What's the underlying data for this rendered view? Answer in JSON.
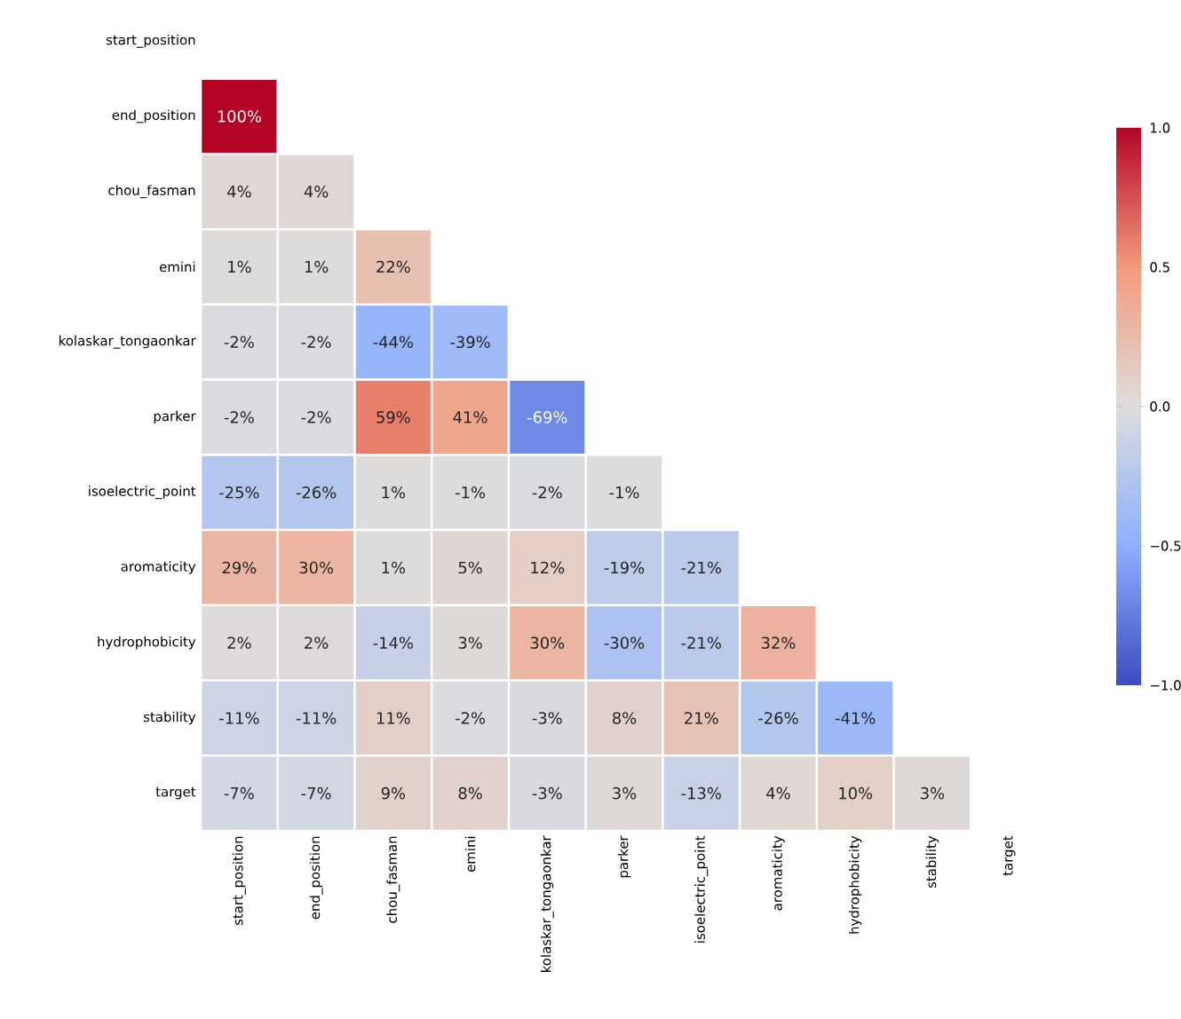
{
  "chart_data": {
    "type": "heatmap",
    "categories": [
      "start_position",
      "end_position",
      "chou_fasman",
      "emini",
      "kolaskar_tongaonkar",
      "parker",
      "isoelectric_point",
      "aromaticity",
      "hydrophobicity",
      "stability",
      "target"
    ],
    "y_categories": [
      "start_position",
      "end_position",
      "chou_fasman",
      "emini",
      "kolaskar_tongaonkar",
      "parker",
      "isoelectric_point",
      "aromaticity",
      "hydrophobicity",
      "stability",
      "target"
    ],
    "cells": [
      [
        null,
        null,
        null,
        null,
        null,
        null,
        null,
        null,
        null,
        null,
        null
      ],
      [
        1.0,
        null,
        null,
        null,
        null,
        null,
        null,
        null,
        null,
        null,
        null
      ],
      [
        0.04,
        0.04,
        null,
        null,
        null,
        null,
        null,
        null,
        null,
        null,
        null
      ],
      [
        0.01,
        0.01,
        0.22,
        null,
        null,
        null,
        null,
        null,
        null,
        null,
        null
      ],
      [
        -0.02,
        -0.02,
        -0.44,
        -0.39,
        null,
        null,
        null,
        null,
        null,
        null,
        null
      ],
      [
        -0.02,
        -0.02,
        0.59,
        0.41,
        -0.69,
        null,
        null,
        null,
        null,
        null,
        null
      ],
      [
        -0.25,
        -0.26,
        0.01,
        -0.01,
        -0.02,
        -0.01,
        null,
        null,
        null,
        null,
        null
      ],
      [
        0.29,
        0.3,
        0.01,
        0.05,
        0.12,
        -0.19,
        -0.21,
        null,
        null,
        null,
        null
      ],
      [
        0.02,
        0.02,
        -0.14,
        0.03,
        0.3,
        -0.3,
        -0.21,
        0.32,
        null,
        null,
        null
      ],
      [
        -0.11,
        -0.11,
        0.11,
        -0.02,
        -0.03,
        0.08,
        0.21,
        -0.26,
        -0.41,
        null,
        null
      ],
      [
        -0.07,
        -0.07,
        0.09,
        0.08,
        -0.03,
        0.03,
        -0.13,
        0.04,
        0.1,
        0.03,
        null
      ]
    ],
    "cell_labels": [
      [
        null,
        null,
        null,
        null,
        null,
        null,
        null,
        null,
        null,
        null,
        null
      ],
      [
        "100%",
        null,
        null,
        null,
        null,
        null,
        null,
        null,
        null,
        null,
        null
      ],
      [
        "4%",
        "4%",
        null,
        null,
        null,
        null,
        null,
        null,
        null,
        null,
        null
      ],
      [
        "1%",
        "1%",
        "22%",
        null,
        null,
        null,
        null,
        null,
        null,
        null,
        null
      ],
      [
        "-2%",
        "-2%",
        "-44%",
        "-39%",
        null,
        null,
        null,
        null,
        null,
        null,
        null
      ],
      [
        "-2%",
        "-2%",
        "59%",
        "41%",
        "-69%",
        null,
        null,
        null,
        null,
        null,
        null
      ],
      [
        "-25%",
        "-26%",
        "1%",
        "-1%",
        "-2%",
        "-1%",
        null,
        null,
        null,
        null,
        null
      ],
      [
        "29%",
        "30%",
        "1%",
        "5%",
        "12%",
        "-19%",
        "-21%",
        null,
        null,
        null,
        null
      ],
      [
        "2%",
        "2%",
        "-14%",
        "3%",
        "30%",
        "-30%",
        "-21%",
        "32%",
        null,
        null,
        null
      ],
      [
        "-11%",
        "-11%",
        "11%",
        "-2%",
        "-3%",
        "8%",
        "21%",
        "-26%",
        "-41%",
        null,
        null
      ],
      [
        "-7%",
        "-7%",
        "9%",
        "8%",
        "-3%",
        "3%",
        "-13%",
        "4%",
        "10%",
        "3%",
        null
      ]
    ],
    "clim": [
      -1,
      1
    ],
    "cticks": [
      {
        "value": -1,
        "label": "−1.0"
      },
      {
        "value": -0.5,
        "label": "−0.5"
      },
      {
        "value": 0,
        "label": "0.0"
      },
      {
        "value": 0.5,
        "label": "0.5"
      },
      {
        "value": 1,
        "label": "1.0"
      }
    ]
  }
}
